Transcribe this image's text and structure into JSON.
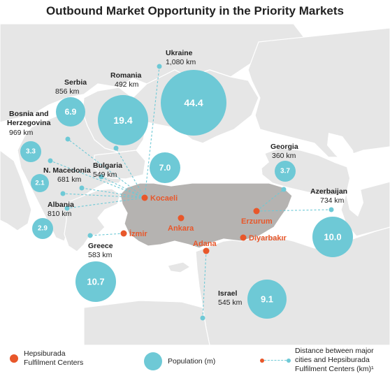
{
  "title": "Outbound Market Opportunity in the Priority Markets",
  "colors": {
    "land": "#e6e6e6",
    "land_border": "#ffffff",
    "turkey": "#b5b3b1",
    "bubble": "#6ec9d6",
    "center": "#e8572a",
    "connector": "#6ec9d6"
  },
  "markets": [
    {
      "id": "ukraine",
      "name": "Ukraine",
      "distance": "1,080 km",
      "population": "44.4"
    },
    {
      "id": "romania",
      "name": "Romania",
      "distance": "492 km",
      "population": "19.4"
    },
    {
      "id": "serbia",
      "name": "Serbia",
      "distance": "856 km",
      "population": "6.9"
    },
    {
      "id": "bosnia",
      "name": "Bosnia and\nHerzegovina",
      "distance": "969 km",
      "population": "3.3"
    },
    {
      "id": "bulgaria",
      "name": "Bulgaria",
      "distance": "549 km",
      "population": "7.0"
    },
    {
      "id": "macedonia",
      "name": "N. Macedonia",
      "distance": "681 km",
      "population": "2.1"
    },
    {
      "id": "albania",
      "name": "Albania",
      "distance": "810 km",
      "population": "2.9"
    },
    {
      "id": "greece",
      "name": "Greece",
      "distance": "583 km",
      "population": "10.7"
    },
    {
      "id": "georgia",
      "name": "Georgia",
      "distance": "360 km",
      "population": "3.7"
    },
    {
      "id": "azerbaijan",
      "name": "Azerbaijan",
      "distance": "734 km",
      "population": "10.0"
    },
    {
      "id": "israel",
      "name": "Israel",
      "distance": "545 km",
      "population": "9.1"
    }
  ],
  "centers": [
    {
      "id": "kocaeli",
      "name": "Kocaeli"
    },
    {
      "id": "izmir",
      "name": "İzmir"
    },
    {
      "id": "ankara",
      "name": "Ankara"
    },
    {
      "id": "adana",
      "name": "Adana"
    },
    {
      "id": "erzurum",
      "name": "Erzurum"
    },
    {
      "id": "diyarbakir",
      "name": "Diyarbakır"
    }
  ],
  "legend": {
    "centers_label": "Hepsiburada\nFulfilment Centers",
    "population_label": "Population (m)",
    "distance_label": "Distance between major\ncities and Hepsiburada\nFulfilment Centers (km)¹"
  }
}
